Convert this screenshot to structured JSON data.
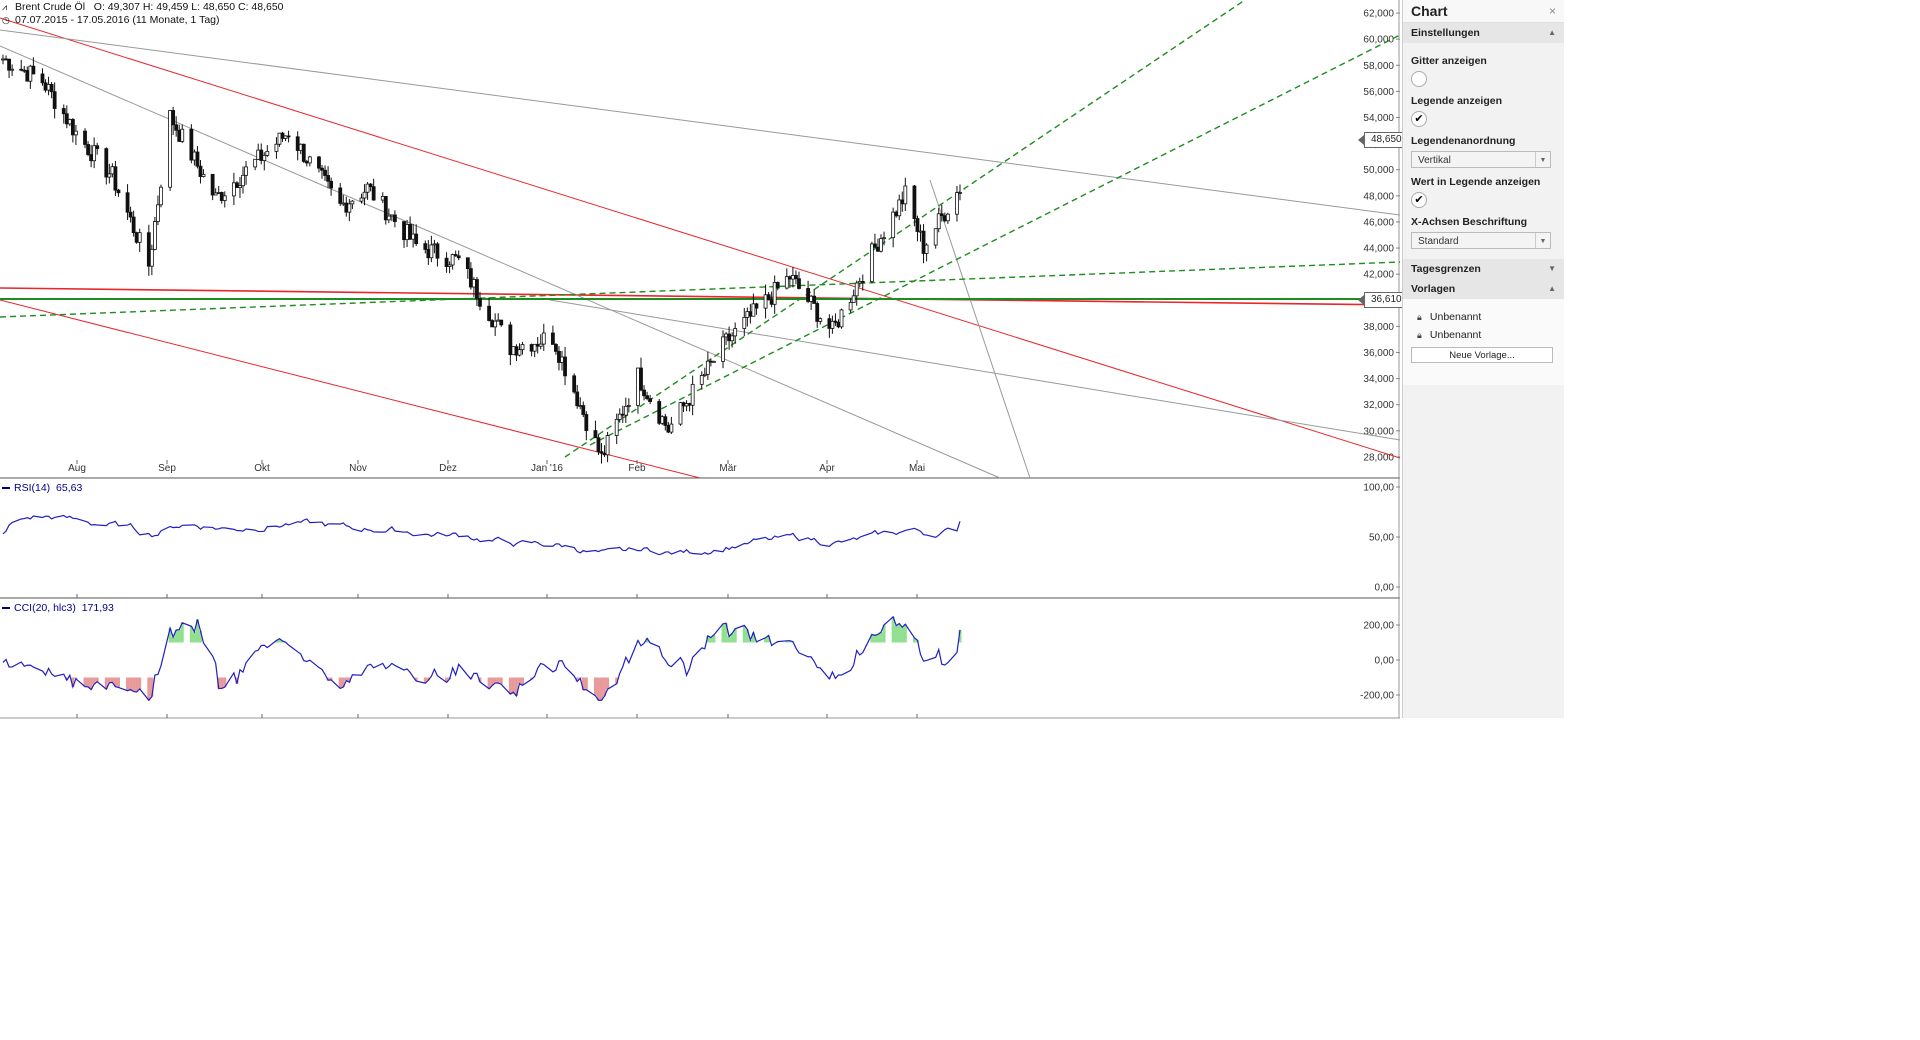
{
  "header": {
    "instrument": "Brent Crude Öl",
    "ohlc": "O: 49,307   H: 49,459   L: 48,650   C: 48,650",
    "range": "07.07.2015 - 17.05.2016 (11 Monate, 1 Tag)"
  },
  "price_axis": {
    "ticks": [
      "62,000",
      "60,000",
      "58,000",
      "56,000",
      "54,000",
      "52,000",
      "50,000",
      "48,000",
      "46,000",
      "44,000",
      "42,000",
      "40,000",
      "38,000",
      "36,000",
      "34,000",
      "32,000",
      "30,000",
      "28,000"
    ],
    "last_price_tag": "48,650",
    "level_tag": "36,610"
  },
  "time_axis": {
    "labels": [
      "Aug",
      "Sep",
      "Okt",
      "Nov",
      "Dez",
      "Jan '16",
      "Feb",
      "Mär",
      "Apr",
      "Mai"
    ]
  },
  "rsi": {
    "legend_name": "RSI(14)",
    "legend_value": "65,63",
    "ticks": [
      "100,00",
      "50,00",
      "0,00"
    ]
  },
  "cci": {
    "legend_name": "CCI(20, hlc3)",
    "legend_value": "171,93",
    "ticks": [
      "200,00",
      "0,00",
      "-200,00"
    ]
  },
  "colors": {
    "trend_red": "#e8262c",
    "trend_gray": "#999999",
    "trend_green": "#1e8c1e",
    "indicator_line": "#2020c0",
    "oversold_fill": "#e89a9a",
    "overbought_fill": "#90e090"
  },
  "panel": {
    "title": "Chart",
    "close_icon": "×",
    "settings_header": "Einstellungen",
    "grid_label": "Gitter anzeigen",
    "legend_label": "Legende anzeigen",
    "legend_order_label": "Legendenanordnung",
    "legend_order_value": "Vertikal",
    "value_in_legend_label": "Wert in Legende anzeigen",
    "x_axis_label": "X-Achsen Beschriftung",
    "x_axis_value": "Standard",
    "day_limits_header": "Tagesgrenzen",
    "templates_header": "Vorlagen",
    "templates": [
      "Unbenannt",
      "Unbenannt"
    ],
    "new_template_button": "Neue Vorlage..."
  },
  "chart_data": {
    "type": "candlestick",
    "instrument": "Brent Crude Öl",
    "interval": "1 Tag",
    "period": "07.07.2015 - 17.05.2016",
    "last": {
      "open": 49.307,
      "high": 49.459,
      "low": 48.65,
      "close": 48.65
    },
    "ylim": [
      27,
      63
    ],
    "approx_close_path": [
      {
        "date": "2015-07-07",
        "close": 58.5
      },
      {
        "date": "2015-07-20",
        "close": 56.8
      },
      {
        "date": "2015-08-01",
        "close": 52.5
      },
      {
        "date": "2015-08-12",
        "close": 49.5
      },
      {
        "date": "2015-08-24",
        "close": 42.7
      },
      {
        "date": "2015-08-31",
        "close": 54.1
      },
      {
        "date": "2015-09-15",
        "close": 47.8
      },
      {
        "date": "2015-10-09",
        "close": 52.9
      },
      {
        "date": "2015-10-26",
        "close": 47.2
      },
      {
        "date": "2015-11-04",
        "close": 48.6
      },
      {
        "date": "2015-11-20",
        "close": 44.2
      },
      {
        "date": "2015-12-04",
        "close": 43.0
      },
      {
        "date": "2015-12-21",
        "close": 36.4
      },
      {
        "date": "2016-01-04",
        "close": 37.2
      },
      {
        "date": "2016-01-20",
        "close": 27.9
      },
      {
        "date": "2016-02-01",
        "close": 34.2
      },
      {
        "date": "2016-02-11",
        "close": 30.1
      },
      {
        "date": "2016-03-01",
        "close": 36.8
      },
      {
        "date": "2016-03-22",
        "close": 41.8
      },
      {
        "date": "2016-04-05",
        "close": 37.6
      },
      {
        "date": "2016-04-20",
        "close": 44.5
      },
      {
        "date": "2016-04-29",
        "close": 48.1
      },
      {
        "date": "2016-05-05",
        "close": 44.1
      },
      {
        "date": "2016-05-17",
        "close": 48.65
      }
    ],
    "horizontal_levels": [
      36.61
    ],
    "rsi_last": 65.63,
    "cci_last": 171.93
  }
}
